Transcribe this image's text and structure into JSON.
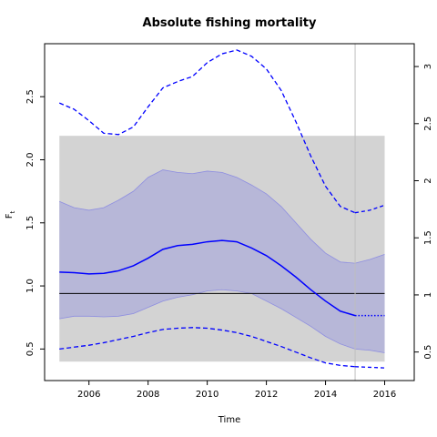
{
  "chart_data": {
    "type": "line",
    "title": "Absolute fishing mortality",
    "xlabel": "Time",
    "ylabel": "F",
    "ylabel_subscript": "t",
    "xlim": [
      2004.5,
      2017.0
    ],
    "ylim": [
      0.25,
      2.92
    ],
    "ylim_right": [
      0.25,
      3.2
    ],
    "x_ticks": [
      2006,
      2008,
      2010,
      2012,
      2014,
      2016
    ],
    "y_ticks": [
      0.5,
      1.0,
      1.5,
      2.0,
      2.5
    ],
    "y_tick_labels": [
      "0.5",
      "1.0",
      "1.5",
      "2.0",
      "2.5"
    ],
    "y_ticks_right": [
      0.5,
      1,
      1.5,
      2,
      2.5,
      3
    ],
    "y_tick_labels_right": [
      "0.5",
      "1",
      "1.5",
      "2",
      "2.5",
      "3"
    ],
    "x_tick_labels": [
      "2006",
      "2008",
      "2010",
      "2012",
      "2014",
      "2016"
    ],
    "gray_band": {
      "x": [
        2005.0,
        2016.0
      ],
      "y": [
        0.4,
        2.19
      ],
      "color": "#d3d3d3"
    },
    "reference_line": {
      "y": 0.94,
      "x": [
        2005.0,
        2016.0
      ],
      "color": "#000000"
    },
    "vertical_line": {
      "x": 2015.0,
      "color": "#bebebe"
    },
    "ci_color": "#b7b7d8",
    "ci_edge_color": "#8e8ee0",
    "line_color": "#0000ff",
    "estimate": {
      "x": [
        2005.0,
        2005.5,
        2006.0,
        2006.5,
        2007.0,
        2007.5,
        2008.0,
        2008.5,
        2009.0,
        2009.5,
        2010.0,
        2010.5,
        2011.0,
        2011.5,
        2012.0,
        2012.5,
        2013.0,
        2013.5,
        2014.0,
        2014.5,
        2015.0
      ],
      "y": [
        1.11,
        1.105,
        1.095,
        1.1,
        1.12,
        1.16,
        1.22,
        1.29,
        1.32,
        1.33,
        1.35,
        1.36,
        1.35,
        1.3,
        1.24,
        1.16,
        1.07,
        0.97,
        0.88,
        0.8,
        0.765
      ]
    },
    "estimate_forecast": {
      "x": [
        2015.0,
        2016.0
      ],
      "y": [
        0.765,
        0.765
      ]
    },
    "ci_lower": {
      "x": [
        2005.0,
        2005.5,
        2006.0,
        2006.5,
        2007.0,
        2007.5,
        2008.0,
        2008.5,
        2009.0,
        2009.5,
        2010.0,
        2010.5,
        2011.0,
        2011.5,
        2012.0,
        2012.5,
        2013.0,
        2013.5,
        2014.0,
        2014.5,
        2015.0,
        2015.5,
        2016.0
      ],
      "y": [
        0.74,
        0.76,
        0.76,
        0.755,
        0.76,
        0.78,
        0.83,
        0.88,
        0.91,
        0.93,
        0.96,
        0.97,
        0.96,
        0.94,
        0.88,
        0.82,
        0.75,
        0.68,
        0.6,
        0.54,
        0.5,
        0.49,
        0.47
      ]
    },
    "ci_upper": {
      "x": [
        2005.0,
        2005.5,
        2006.0,
        2006.5,
        2007.0,
        2007.5,
        2008.0,
        2008.5,
        2009.0,
        2009.5,
        2010.0,
        2010.5,
        2011.0,
        2011.5,
        2012.0,
        2012.5,
        2013.0,
        2013.5,
        2014.0,
        2014.5,
        2015.0,
        2015.5,
        2016.0
      ],
      "y": [
        1.67,
        1.62,
        1.6,
        1.62,
        1.68,
        1.75,
        1.86,
        1.92,
        1.9,
        1.89,
        1.91,
        1.9,
        1.86,
        1.8,
        1.73,
        1.63,
        1.5,
        1.37,
        1.26,
        1.19,
        1.18,
        1.21,
        1.25
      ]
    },
    "outer_upper": {
      "x": [
        2005.0,
        2005.5,
        2006.0,
        2006.5,
        2007.0,
        2007.5,
        2008.0,
        2008.5,
        2009.0,
        2009.5,
        2010.0,
        2010.5,
        2011.0,
        2011.5,
        2012.0,
        2012.5,
        2013.0,
        2013.5,
        2014.0,
        2014.5,
        2015.0
      ],
      "y": [
        2.45,
        2.4,
        2.31,
        2.21,
        2.2,
        2.26,
        2.42,
        2.57,
        2.62,
        2.66,
        2.77,
        2.84,
        2.87,
        2.82,
        2.72,
        2.55,
        2.3,
        2.03,
        1.79,
        1.63,
        1.58
      ]
    },
    "outer_upper_forecast": {
      "x": [
        2015.0,
        2015.5,
        2016.0
      ],
      "y": [
        1.58,
        1.6,
        1.64
      ]
    },
    "outer_lower": {
      "x": [
        2005.0,
        2005.5,
        2006.0,
        2006.5,
        2007.0,
        2007.5,
        2008.0,
        2008.5,
        2009.0,
        2009.5,
        2010.0,
        2010.5,
        2011.0,
        2011.5,
        2012.0,
        2012.5,
        2013.0,
        2013.5,
        2014.0,
        2014.5,
        2015.0
      ],
      "y": [
        0.5,
        0.515,
        0.53,
        0.55,
        0.575,
        0.6,
        0.63,
        0.655,
        0.665,
        0.67,
        0.665,
        0.65,
        0.63,
        0.6,
        0.56,
        0.52,
        0.475,
        0.43,
        0.39,
        0.37,
        0.36
      ]
    },
    "outer_lower_forecast": {
      "x": [
        2015.0,
        2015.5,
        2016.0
      ],
      "y": [
        0.36,
        0.355,
        0.35
      ]
    }
  }
}
